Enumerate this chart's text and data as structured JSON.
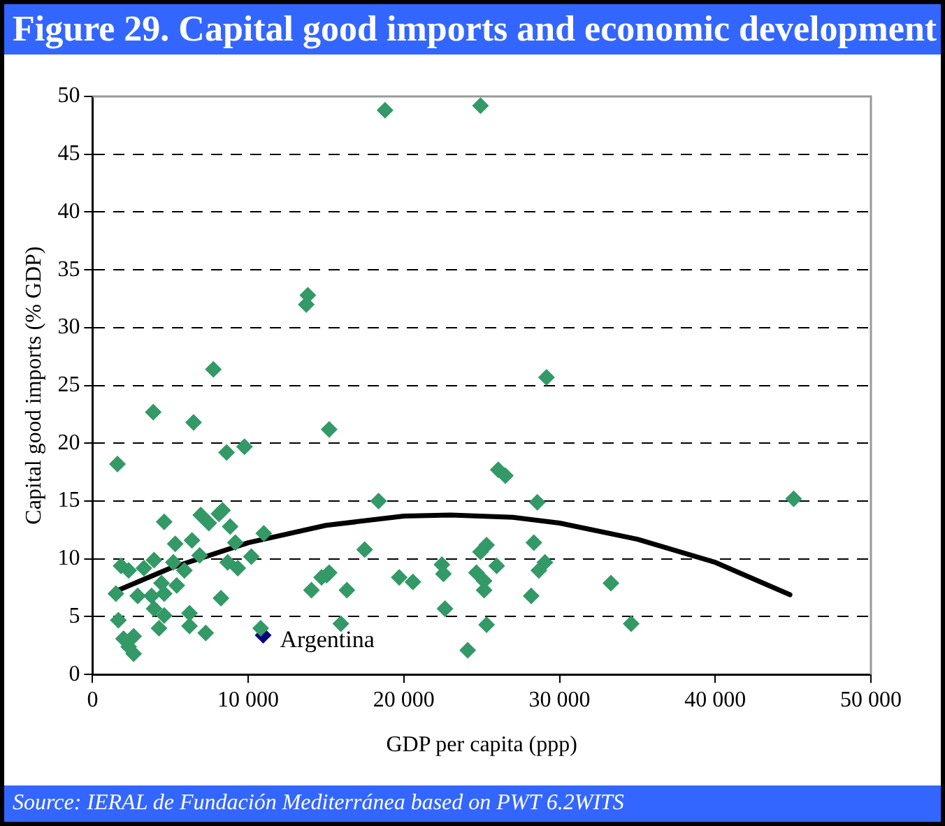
{
  "chart_data": {
    "type": "scatter",
    "title": "Figure 29. Capital good imports and economic development",
    "xlabel": "GDP per capita (ppp)",
    "ylabel": "Capital good imports (% GDP)",
    "annotations": [
      "Source: IERAL de Fundación Mediterránea based on PWT 6.2WITS"
    ],
    "xlim": [
      0,
      50000
    ],
    "xticks": [
      0,
      {
        "value": 10000,
        "label": "10 000"
      },
      {
        "value": 20000,
        "label": "20 000"
      },
      {
        "value": 30000,
        "label": "30 000"
      },
      {
        "value": 40000,
        "label": "40 000"
      },
      {
        "value": 50000,
        "label": "50 000"
      }
    ],
    "ylim": [
      0,
      50
    ],
    "yticks": [
      0,
      5,
      10,
      15,
      20,
      25,
      30,
      35,
      40,
      45,
      50
    ],
    "grid": "y",
    "legend": false,
    "marker": "diamond",
    "series": [
      {
        "color": "#339966",
        "x": [
          1600,
          3900,
          7760,
          6490,
          8610,
          9760,
          15200,
          4600,
          11000,
          6950,
          8120,
          7470,
          8840,
          5310,
          6390,
          9170,
          1830,
          2320,
          3950,
          3300,
          5190,
          5900,
          6880,
          8680,
          9330,
          10200,
          1500,
          2900,
          3790,
          4600,
          5410,
          3950,
          4600,
          4270,
          6230,
          6230,
          7270,
          8250,
          1660,
          1990,
          2640,
          2640,
          2320,
          4430,
          14060,
          15040,
          16340,
          15950,
          10800,
          8350,
          18790,
          24920,
          13830,
          13730,
          29160,
          26060,
          26520,
          18370,
          28570,
          45040,
          17480,
          25310,
          24920,
          28350,
          29060,
          28670,
          22440,
          22540,
          25960,
          24660,
          25150,
          25150,
          28180,
          19700,
          20580,
          15200,
          14710,
          22640,
          33300,
          25310,
          34600,
          24100
        ],
        "values": [
          18.2,
          22.7,
          26.4,
          21.8,
          19.2,
          19.7,
          21.2,
          13.2,
          12.2,
          13.8,
          13.9,
          13.1,
          12.8,
          11.3,
          11.6,
          11.4,
          9.4,
          9.0,
          9.9,
          9.2,
          9.7,
          9.0,
          10.3,
          9.7,
          9.2,
          10.2,
          7.0,
          6.8,
          6.8,
          7.0,
          7.7,
          5.7,
          5.1,
          4.0,
          5.3,
          4.2,
          3.6,
          6.6,
          4.7,
          3.1,
          3.3,
          1.8,
          2.4,
          7.9,
          7.3,
          8.6,
          7.3,
          4.4,
          4.0,
          14.2,
          48.8,
          49.2,
          32.8,
          32.0,
          25.7,
          17.7,
          17.2,
          15.0,
          14.9,
          15.2,
          10.8,
          11.2,
          10.6,
          11.4,
          9.7,
          9.0,
          9.5,
          8.7,
          9.4,
          8.8,
          8.1,
          7.3,
          6.8,
          8.4,
          8.0,
          8.8,
          8.4,
          5.7,
          7.9,
          4.3,
          4.4,
          2.1
        ]
      },
      {
        "name": "Argentina",
        "color": "#000080",
        "x": [
          10960
        ],
        "values": [
          3.4
        ]
      },
      {
        "type": "line",
        "color": "#000000",
        "marker": "none",
        "x": [
          1500,
          5000,
          10000,
          15000,
          20000,
          23000,
          27000,
          30000,
          35000,
          40000,
          44800
        ],
        "values": [
          7.2,
          9.2,
          11.4,
          12.9,
          13.7,
          13.8,
          13.6,
          13.1,
          11.7,
          9.7,
          6.9
        ]
      }
    ]
  }
}
